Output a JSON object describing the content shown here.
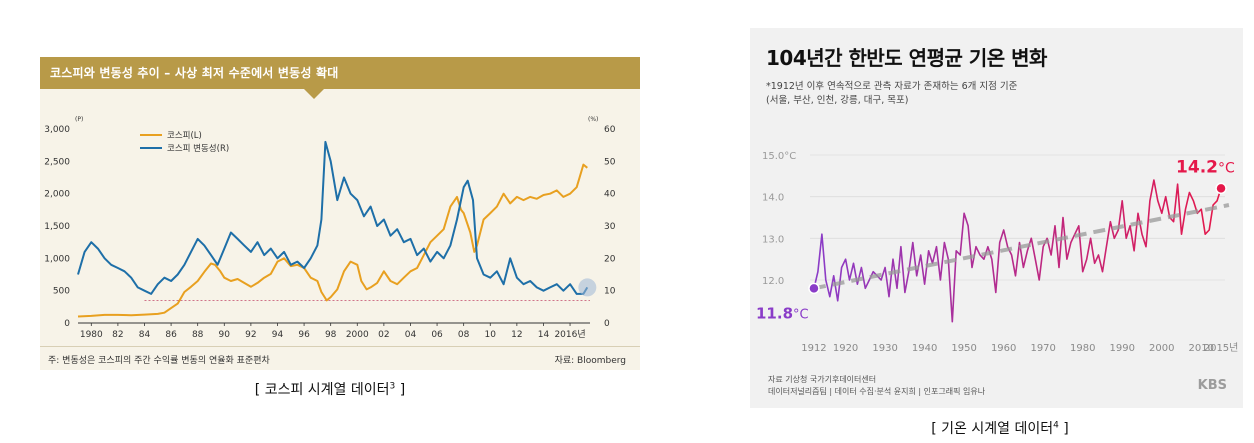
{
  "kospi": {
    "banner_title": "코스피와 변동성 추이 – 사상 최저 수준에서 변동성 확대",
    "note": "주: 변동성은 코스피의 주간 수익률 변동의 연율화 표준편차",
    "source": "자료: Bloomberg",
    "caption_text": "[ 코스피 시계열 데이터",
    "caption_sup": "3",
    "caption_end": " ]"
  },
  "temperature": {
    "title": "104년간 한반도 연평균 기온 변화",
    "subtitle_line1": "*1912년 이후 연속적으로 관측 자료가 존재하는 6개 지점 기준",
    "subtitle_line2": "(서울, 부산, 인천, 강릉, 대구, 목포)",
    "source_line1": "자료 기상청 국가기후데이터센터",
    "source_line2": "데이터저널리즘팀 | 데이터 수집·분석 윤지희 | 인포그래픽 임유나",
    "brand": "KBS",
    "caption_text": "[ 기온 시계열 데이터",
    "caption_sup": "4",
    "caption_end": " ]"
  },
  "chart_data": [
    {
      "type": "line",
      "y_left_unit": "(P)",
      "y_right_unit": "(%)",
      "y_left_ticks": [
        "3,000",
        "2,500",
        "2,000",
        "1,500",
        "1,000",
        "500",
        "0"
      ],
      "y_left_values": [
        3000,
        2500,
        2000,
        1500,
        1000,
        500,
        0
      ],
      "y_right_ticks": [
        "60",
        "50",
        "40",
        "30",
        "20",
        "10",
        "0"
      ],
      "y_right_values": [
        60,
        50,
        40,
        30,
        20,
        10,
        0
      ],
      "ylim_left": [
        0,
        3000
      ],
      "ylim_right": [
        0,
        60
      ],
      "xlim": [
        1979,
        2017.5
      ],
      "x_ticks": [
        {
          "x": 1980,
          "label": "1980"
        },
        {
          "x": 1982,
          "label": "82"
        },
        {
          "x": 1984,
          "label": "84"
        },
        {
          "x": 1986,
          "label": "86"
        },
        {
          "x": 1988,
          "label": "88"
        },
        {
          "x": 1990,
          "label": "90"
        },
        {
          "x": 1992,
          "label": "92"
        },
        {
          "x": 1994,
          "label": "94"
        },
        {
          "x": 1996,
          "label": "96"
        },
        {
          "x": 1998,
          "label": "98"
        },
        {
          "x": 2000,
          "label": "2000"
        },
        {
          "x": 2002,
          "label": "02"
        },
        {
          "x": 2004,
          "label": "04"
        },
        {
          "x": 2006,
          "label": "06"
        },
        {
          "x": 2008,
          "label": "08"
        },
        {
          "x": 2010,
          "label": "10"
        },
        {
          "x": 2012,
          "label": "12"
        },
        {
          "x": 2014,
          "label": "14"
        },
        {
          "x": 2016,
          "label": "2016년"
        }
      ],
      "reference_line_left_value": 350,
      "series": [
        {
          "name": "코스피(L)",
          "axis": "left",
          "color": "#e8a020",
          "x": [
            1979,
            1980,
            1981,
            1982,
            1983,
            1984,
            1985,
            1985.5,
            1986,
            1986.5,
            1987,
            1987.5,
            1988,
            1988.5,
            1989,
            1989.3,
            1989.7,
            1990,
            1990.5,
            1991,
            1991.5,
            1992,
            1992.5,
            1993,
            1993.5,
            1994,
            1994.5,
            1995,
            1995.5,
            1996,
            1996.5,
            1997,
            1997.3,
            1997.7,
            1998,
            1998.5,
            1999,
            1999.5,
            2000,
            2000.3,
            2000.7,
            2001,
            2001.5,
            2002,
            2002.5,
            2003,
            2003.5,
            2004,
            2004.5,
            2005,
            2005.5,
            2006,
            2006.5,
            2007,
            2007.5,
            2007.8,
            2008,
            2008.5,
            2008.8,
            2009,
            2009.5,
            2010,
            2010.5,
            2011,
            2011.5,
            2012,
            2012.5,
            2013,
            2013.5,
            2014,
            2014.5,
            2015,
            2015.5,
            2016,
            2016.5,
            2017,
            2017.3
          ],
          "values": [
            100,
            110,
            125,
            125,
            120,
            130,
            140,
            160,
            230,
            300,
            480,
            560,
            650,
            790,
            920,
            900,
            800,
            700,
            650,
            680,
            620,
            560,
            620,
            700,
            760,
            950,
            1000,
            880,
            900,
            850,
            700,
            650,
            480,
            350,
            400,
            520,
            800,
            950,
            900,
            650,
            520,
            550,
            620,
            800,
            650,
            600,
            700,
            800,
            850,
            1050,
            1250,
            1350,
            1450,
            1800,
            1950,
            1750,
            1700,
            1400,
            1100,
            1200,
            1600,
            1700,
            1800,
            2000,
            1850,
            1950,
            1900,
            1950,
            1920,
            1980,
            2000,
            2050,
            1950,
            2000,
            2100,
            2450,
            2400
          ]
        },
        {
          "name": "코스피 변동성(R)",
          "axis": "right",
          "color": "#1e6fa8",
          "x": [
            1979,
            1979.5,
            1980,
            1980.5,
            1981,
            1981.5,
            1982,
            1982.5,
            1983,
            1983.5,
            1984,
            1984.5,
            1985,
            1985.5,
            1986,
            1986.5,
            1987,
            1987.5,
            1988,
            1988.5,
            1989,
            1989.5,
            1990,
            1990.5,
            1991,
            1991.5,
            1992,
            1992.5,
            1993,
            1993.5,
            1994,
            1994.5,
            1995,
            1995.5,
            1996,
            1996.5,
            1997,
            1997.3,
            1997.6,
            1998,
            1998.5,
            1999,
            1999.5,
            2000,
            2000.5,
            2001,
            2001.5,
            2002,
            2002.5,
            2003,
            2003.5,
            2004,
            2004.5,
            2005,
            2005.5,
            2006,
            2006.5,
            2007,
            2007.5,
            2008,
            2008.3,
            2008.7,
            2009,
            2009.5,
            2010,
            2010.5,
            2011,
            2011.5,
            2012,
            2012.5,
            2013,
            2013.5,
            2014,
            2014.5,
            2015,
            2015.5,
            2016,
            2016.5,
            2017,
            2017.3
          ],
          "values": [
            15,
            22,
            25,
            23,
            20,
            18,
            17,
            16,
            14,
            11,
            10,
            9,
            12,
            14,
            13,
            15,
            18,
            22,
            26,
            24,
            21,
            18,
            23,
            28,
            26,
            24,
            22,
            25,
            21,
            23,
            20,
            22,
            18,
            19,
            17,
            20,
            24,
            32,
            56,
            50,
            38,
            45,
            40,
            38,
            33,
            36,
            30,
            32,
            27,
            29,
            25,
            26,
            21,
            23,
            19,
            22,
            20,
            24,
            32,
            42,
            44,
            38,
            20,
            15,
            14,
            16,
            12,
            20,
            14,
            12,
            13,
            11,
            10,
            11,
            12,
            10,
            12,
            9,
            9,
            11
          ]
        }
      ]
    },
    {
      "type": "line",
      "yaxis_ticks": [
        "15.0°C",
        "14.0",
        "13.0",
        "12.0"
      ],
      "yaxis_values": [
        15,
        14,
        13,
        12
      ],
      "ylim": [
        10.8,
        15.6
      ],
      "xlim": [
        1911,
        2016
      ],
      "x_ticks": [
        {
          "x": 1912,
          "label": "1912"
        },
        {
          "x": 1920,
          "label": "1920"
        },
        {
          "x": 1930,
          "label": "1930"
        },
        {
          "x": 1940,
          "label": "1940"
        },
        {
          "x": 1950,
          "label": "1950"
        },
        {
          "x": 1960,
          "label": "1960"
        },
        {
          "x": 1970,
          "label": "1970"
        },
        {
          "x": 1980,
          "label": "1980"
        },
        {
          "x": 1990,
          "label": "1990"
        },
        {
          "x": 2000,
          "label": "2000"
        },
        {
          "x": 2010,
          "label": "2010"
        },
        {
          "x": 2015,
          "label": "2015년"
        }
      ],
      "start_label": "11.8",
      "start_unit": "°C",
      "end_label": "14.2",
      "end_unit": "°C",
      "start_point": {
        "x": 1912,
        "y": 11.8
      },
      "end_point": {
        "x": 2015,
        "y": 14.2
      },
      "trend": {
        "x": [
          1912,
          2017
        ],
        "y": [
          11.8,
          13.8
        ]
      },
      "start_color": "#8a3cc8",
      "end_color": "#e5184a",
      "series": [
        {
          "x": [
            1912,
            1913,
            1914,
            1915,
            1916,
            1917,
            1918,
            1919,
            1920,
            1921,
            1922,
            1923,
            1924,
            1925,
            1926,
            1927,
            1928,
            1929,
            1930,
            1931,
            1932,
            1933,
            1934,
            1935,
            1936,
            1937,
            1938,
            1939,
            1940,
            1941,
            1942,
            1943,
            1944,
            1945,
            1946,
            1947,
            1948,
            1949,
            1950,
            1951,
            1952,
            1953,
            1954,
            1955,
            1956,
            1957,
            1958,
            1959,
            1960,
            1961,
            1962,
            1963,
            1964,
            1965,
            1966,
            1967,
            1968,
            1969,
            1970,
            1971,
            1972,
            1973,
            1974,
            1975,
            1976,
            1977,
            1978,
            1979,
            1980,
            1981,
            1982,
            1983,
            1984,
            1985,
            1986,
            1987,
            1988,
            1989,
            1990,
            1991,
            1992,
            1993,
            1994,
            1995,
            1996,
            1997,
            1998,
            1999,
            2000,
            2001,
            2002,
            2003,
            2004,
            2005,
            2006,
            2007,
            2008,
            2009,
            2010,
            2011,
            2012,
            2013,
            2014,
            2015
          ],
          "values": [
            11.8,
            12.2,
            13.1,
            12.0,
            11.6,
            12.1,
            11.5,
            12.3,
            12.5,
            12.0,
            12.4,
            11.9,
            12.3,
            11.8,
            12.0,
            12.2,
            12.1,
            12.0,
            12.3,
            11.6,
            12.5,
            11.8,
            12.8,
            11.7,
            12.2,
            12.9,
            12.1,
            12.6,
            11.9,
            12.7,
            12.4,
            12.8,
            12.0,
            12.9,
            12.5,
            11.0,
            12.7,
            12.6,
            13.6,
            13.3,
            12.3,
            12.8,
            12.6,
            12.5,
            12.8,
            12.5,
            11.7,
            12.9,
            13.2,
            12.8,
            12.6,
            12.1,
            12.9,
            12.3,
            12.7,
            13.0,
            12.5,
            12.0,
            12.8,
            13.0,
            12.6,
            13.3,
            12.3,
            13.5,
            12.5,
            12.9,
            13.1,
            13.3,
            12.2,
            12.5,
            13.0,
            12.4,
            12.6,
            12.2,
            12.8,
            13.4,
            13.0,
            13.2,
            13.9,
            13.0,
            13.3,
            12.7,
            13.6,
            13.1,
            12.8,
            13.9,
            14.4,
            13.9,
            13.6,
            14.0,
            13.5,
            13.4,
            14.3,
            13.1,
            13.7,
            14.1,
            13.9,
            13.6,
            13.7,
            13.1,
            13.2,
            13.8,
            13.9,
            14.2
          ]
        }
      ]
    }
  ]
}
